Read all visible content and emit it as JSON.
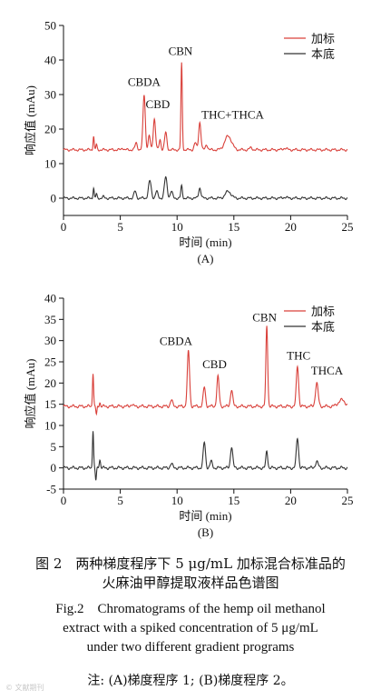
{
  "chart_data": [
    {
      "type": "line",
      "panel_label": "(A)",
      "xlabel": "时间 (min)",
      "ylabel": "响应值 (mAu)",
      "xlim": [
        0,
        25
      ],
      "ylim": [
        -5,
        50
      ],
      "xticks": [
        0,
        5,
        10,
        15,
        20,
        25
      ],
      "yticks": [
        0,
        10,
        20,
        30,
        40,
        50
      ],
      "grid": false,
      "legend_position": "top-right",
      "series": [
        {
          "name": "加标",
          "color": "#d9403a",
          "baseline": 14,
          "peaks": [
            [
              2.65,
              4,
              0.05
            ],
            [
              2.9,
              1.5,
              0.05
            ],
            [
              5.2,
              0.6,
              0.08
            ],
            [
              6.4,
              2,
              0.1
            ],
            [
              7.1,
              16,
              0.1
            ],
            [
              7.55,
              4,
              0.09
            ],
            [
              8.0,
              9,
              0.1
            ],
            [
              8.5,
              3,
              0.08
            ],
            [
              9.0,
              5,
              0.1
            ],
            [
              10.4,
              25,
              0.06
            ],
            [
              11.6,
              2,
              0.1
            ],
            [
              12.0,
              8,
              0.1
            ],
            [
              12.6,
              1.5,
              0.1
            ],
            [
              14.5,
              4,
              0.3
            ],
            [
              16.5,
              0.6,
              0.12
            ],
            [
              19.5,
              0.5,
              0.15
            ]
          ]
        },
        {
          "name": "本底",
          "color": "#333333",
          "baseline": 0,
          "peaks": [
            [
              2.65,
              3,
              0.05
            ],
            [
              2.9,
              1.2,
              0.05
            ],
            [
              3.5,
              0.4,
              0.08
            ],
            [
              6.3,
              2,
              0.1
            ],
            [
              7.6,
              5,
              0.12
            ],
            [
              8.2,
              2,
              0.1
            ],
            [
              9.0,
              6,
              0.12
            ],
            [
              9.5,
              2,
              0.1
            ],
            [
              10.4,
              3.5,
              0.07
            ],
            [
              12.0,
              3,
              0.1
            ],
            [
              14.5,
              2,
              0.25
            ],
            [
              19.5,
              0.3,
              0.15
            ]
          ]
        }
      ],
      "annotations": [
        {
          "text": "CBDA",
          "x": 7.1,
          "y": 32.5
        },
        {
          "text": "CBD",
          "x": 8.3,
          "y": 26
        },
        {
          "text": "CBN",
          "x": 10.3,
          "y": 41.5
        },
        {
          "text": "THC+THCA",
          "x": 14.9,
          "y": 23
        }
      ]
    },
    {
      "type": "line",
      "panel_label": "(B)",
      "xlabel": "时间 (min)",
      "ylabel": "响应值 (mAu)",
      "xlim": [
        0,
        25
      ],
      "ylim": [
        -5,
        40
      ],
      "xticks": [
        0,
        5,
        10,
        15,
        20,
        25
      ],
      "yticks": [
        -5,
        0,
        5,
        10,
        15,
        20,
        25,
        30,
        35,
        40
      ],
      "grid": false,
      "legend_position": "top-right",
      "series": [
        {
          "name": "加标",
          "color": "#d9403a",
          "baseline": 14.5,
          "peaks": [
            [
              2.6,
              8,
              0.05
            ],
            [
              2.9,
              -2,
              0.05
            ],
            [
              3.2,
              1,
              0.05
            ],
            [
              6.0,
              0.5,
              0.1
            ],
            [
              9.5,
              1.5,
              0.1
            ],
            [
              11.0,
              13,
              0.1
            ],
            [
              12.4,
              4.5,
              0.1
            ],
            [
              13.6,
              7,
              0.1
            ],
            [
              14.8,
              4,
              0.1
            ],
            [
              17.9,
              19,
              0.08
            ],
            [
              20.6,
              9.5,
              0.1
            ],
            [
              22.3,
              5.5,
              0.12
            ],
            [
              24.5,
              1.5,
              0.3
            ]
          ]
        },
        {
          "name": "本底",
          "color": "#333333",
          "baseline": 0,
          "peaks": [
            [
              2.6,
              9,
              0.05
            ],
            [
              2.85,
              -3,
              0.05
            ],
            [
              3.2,
              2,
              0.06
            ],
            [
              9.5,
              1,
              0.1
            ],
            [
              12.4,
              6,
              0.1
            ],
            [
              13.0,
              1.5,
              0.1
            ],
            [
              14.8,
              5,
              0.1
            ],
            [
              17.9,
              4,
              0.08
            ],
            [
              20.6,
              7,
              0.1
            ],
            [
              22.3,
              1.5,
              0.12
            ]
          ]
        }
      ],
      "annotations": [
        {
          "text": "CBDA",
          "x": 9.9,
          "y": 29
        },
        {
          "text": "CBD",
          "x": 13.3,
          "y": 23.5
        },
        {
          "text": "CBN",
          "x": 17.7,
          "y": 34.5
        },
        {
          "text": "THC",
          "x": 20.7,
          "y": 25.5
        },
        {
          "text": "THCA",
          "x": 23.2,
          "y": 22
        }
      ]
    }
  ],
  "caption": {
    "zh_line1": "图 2　两种梯度程序下 5 μg/mL 加标混合标准品的",
    "zh_line2": "火麻油甲醇提取液样品色谱图",
    "en_line1": "Fig.2　Chromatograms of the hemp oil methanol",
    "en_line2": "extract with a spiked concentration of 5 μg/mL",
    "en_line3": "under two different gradient programs",
    "note": "注: (A)梯度程序 1; (B)梯度程序 2。"
  },
  "watermark": "© 文献期刊"
}
